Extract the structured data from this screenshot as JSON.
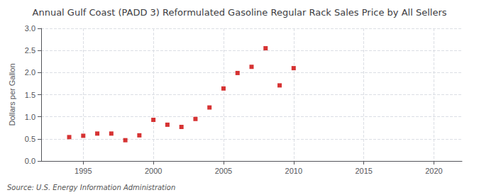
{
  "chart_data": {
    "type": "scatter",
    "title": "Annual Gulf Coast (PADD 3) Reformulated Gasoline Regular Rack Sales Price by All Sellers",
    "ylabel": "Dollars per Gallon",
    "annotations": [
      "Source: U.S. Energy Information Administration"
    ],
    "x": [
      1994,
      1995,
      1996,
      1997,
      1998,
      1999,
      2000,
      2001,
      2002,
      2003,
      2004,
      2005,
      2006,
      2007,
      2008,
      2009,
      2010
    ],
    "values": [
      0.54,
      0.57,
      0.62,
      0.62,
      0.47,
      0.58,
      0.93,
      0.82,
      0.77,
      0.95,
      1.21,
      1.64,
      1.99,
      2.13,
      2.55,
      1.71,
      2.1
    ],
    "color": "#cc0000",
    "marker": "square",
    "xlim": [
      1992,
      2022
    ],
    "xticks": [
      1995,
      2000,
      2005,
      2010,
      2015,
      2020
    ],
    "ylim": [
      0.0,
      3.0
    ],
    "yticks": [
      {
        "value": 0,
        "label": "0.0"
      },
      0.5,
      {
        "value": 1,
        "label": "1.0"
      },
      1.5,
      {
        "value": 2,
        "label": "2.0"
      },
      2.5,
      {
        "value": 3,
        "label": "3.0"
      }
    ],
    "grid": true
  }
}
